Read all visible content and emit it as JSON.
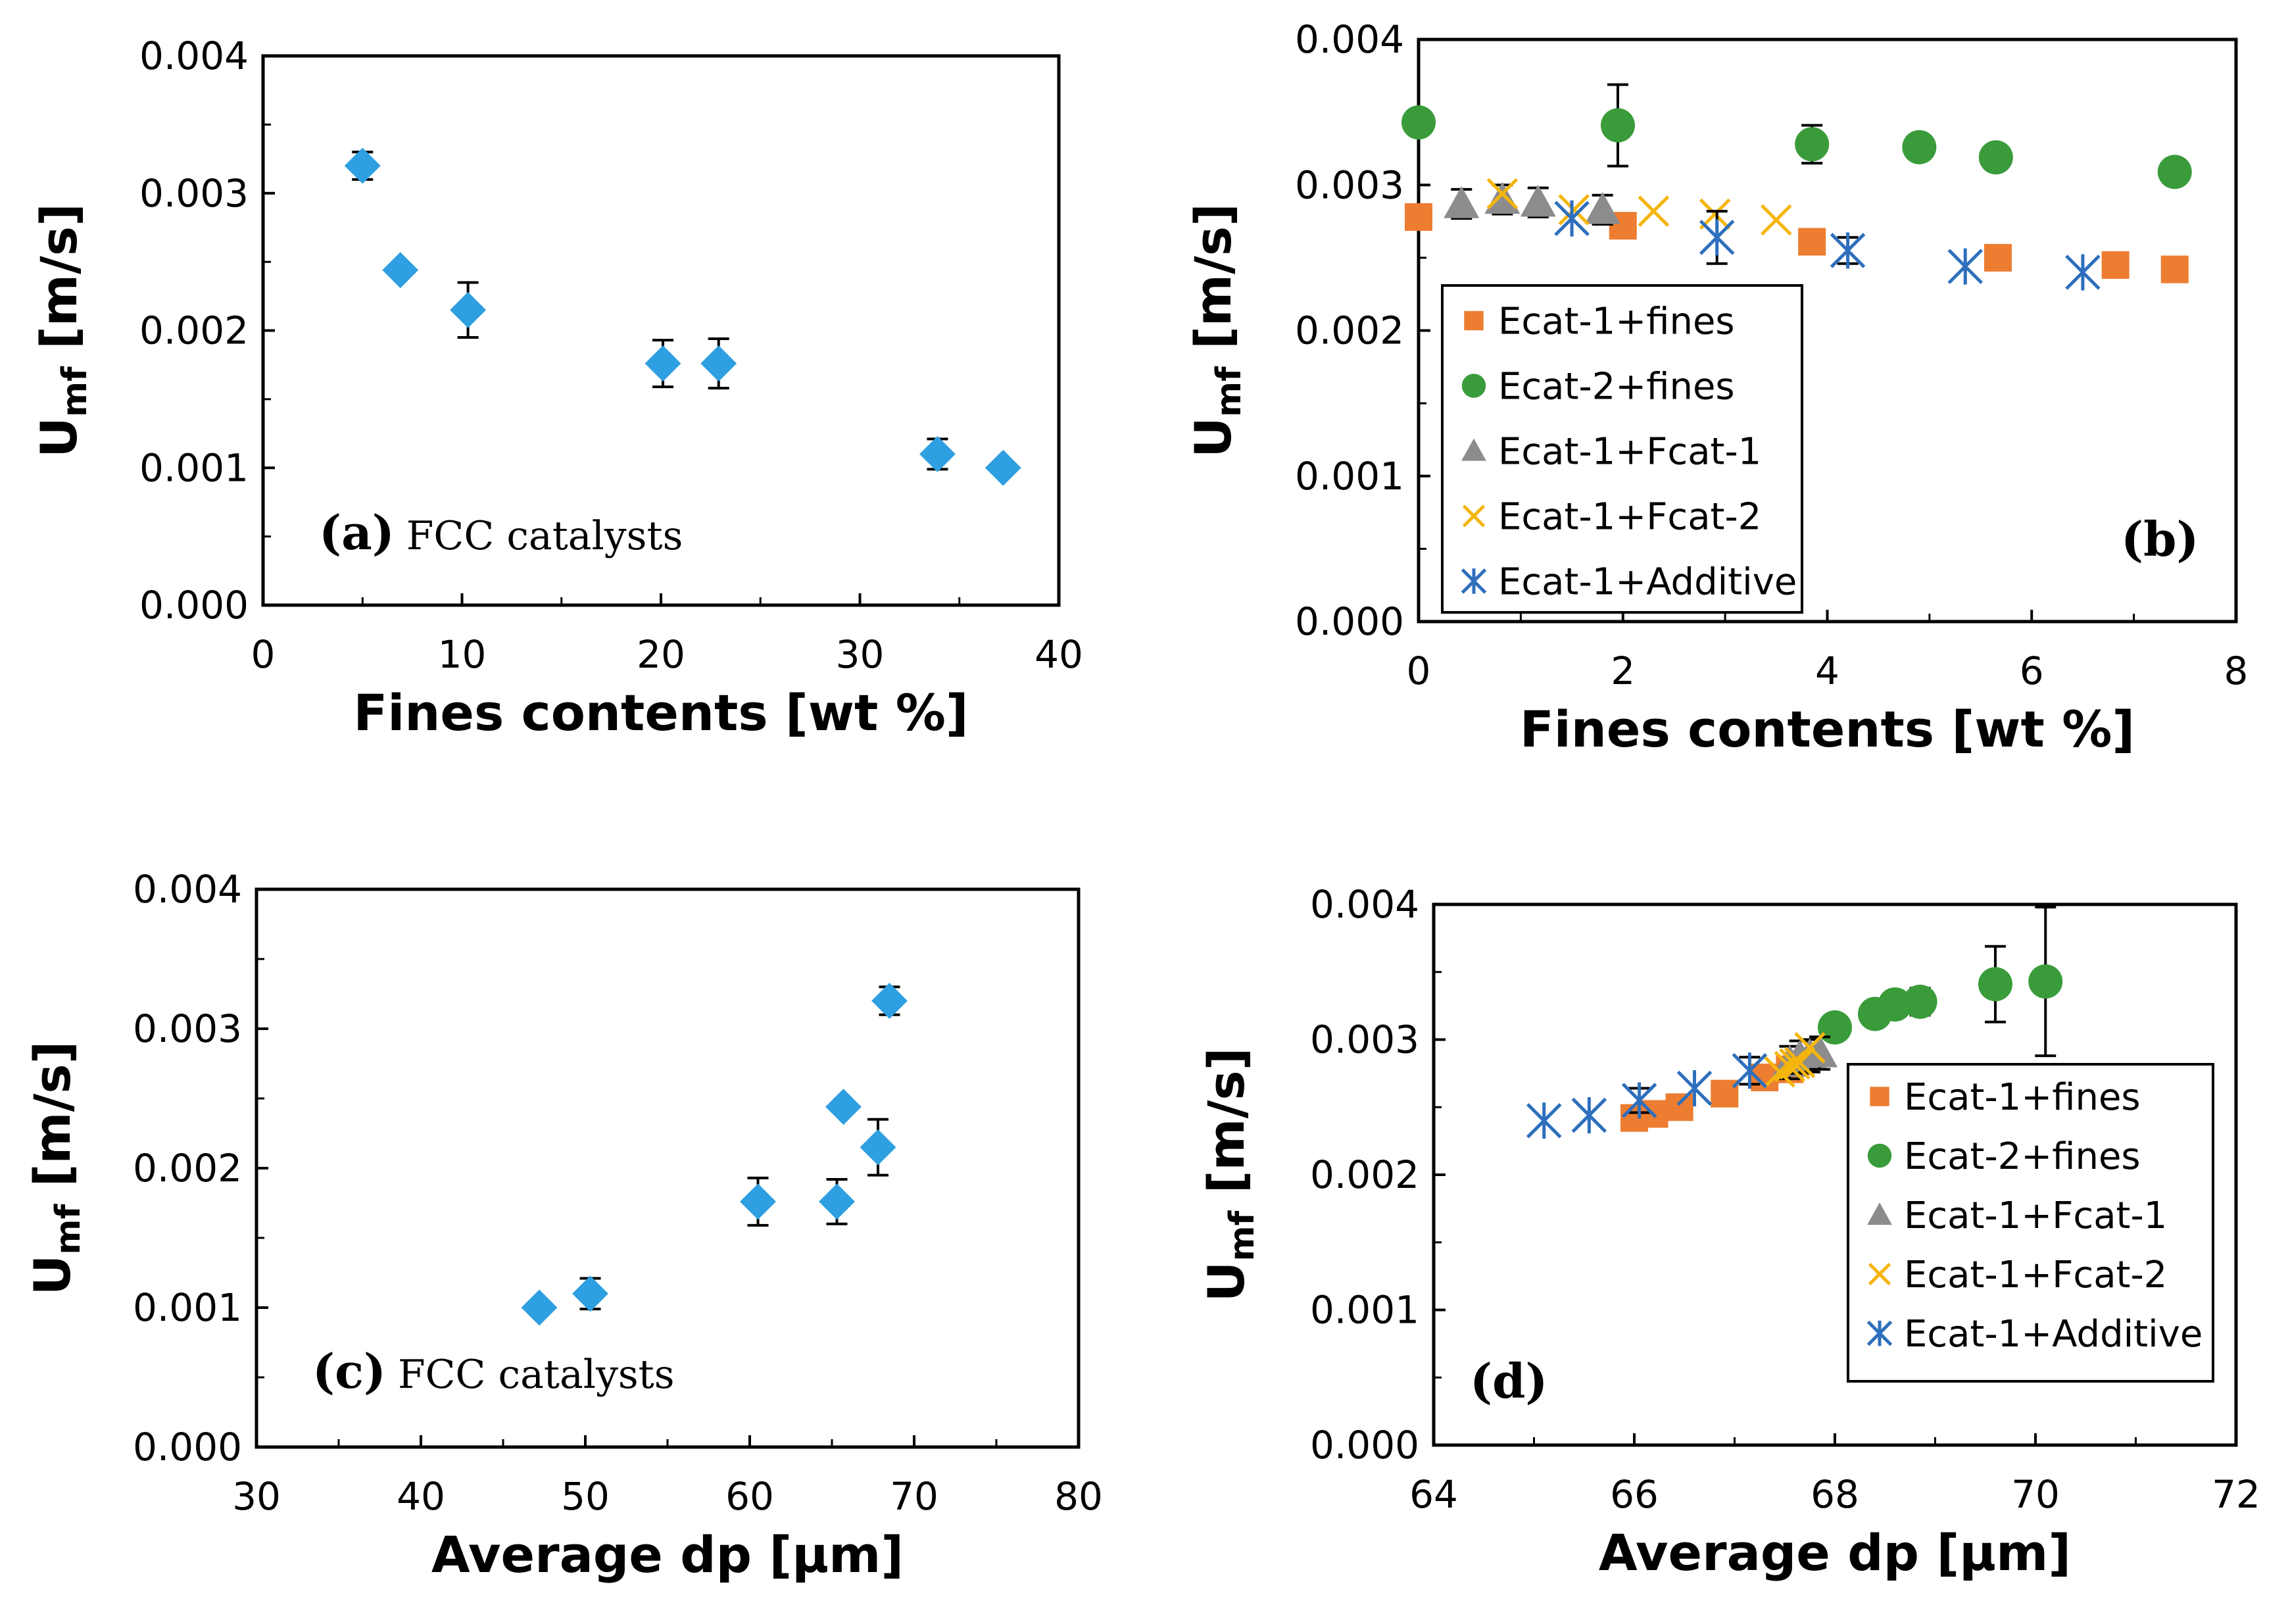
{
  "chart_data": [
    {
      "id": "a",
      "type": "scatter",
      "title": "",
      "annotation": {
        "label": "(a)",
        "text": "FCC catalysts"
      },
      "xlabel": "Fines contents [wt %]",
      "ylabel": {
        "main": "U",
        "sub": "mf",
        "units": " [m/s]"
      },
      "xlim": [
        0,
        40
      ],
      "ylim": [
        0,
        0.004
      ],
      "xticks": [
        "0",
        "10",
        "20",
        "30",
        "40"
      ],
      "xtick_values": [
        0,
        10,
        20,
        30,
        40
      ],
      "yticks": [
        "0.000",
        "0.001",
        "0.002",
        "0.003",
        "0.004"
      ],
      "ytick_values": [
        0,
        0.001,
        0.002,
        0.003,
        0.004
      ],
      "legend": null,
      "series": [
        {
          "name": "FCC catalysts",
          "marker": "diamond",
          "color": "#2e9fe0",
          "points": [
            {
              "x": 5.0,
              "y": 0.0032,
              "err": 0.0001
            },
            {
              "x": 6.9,
              "y": 0.00244,
              "err": 0
            },
            {
              "x": 10.3,
              "y": 0.00215,
              "err": 0.0002
            },
            {
              "x": 20.1,
              "y": 0.00176,
              "err": 0.00017
            },
            {
              "x": 22.9,
              "y": 0.00176,
              "err": 0.00018
            },
            {
              "x": 33.9,
              "y": 0.0011,
              "err": 0.00011
            },
            {
              "x": 37.2,
              "y": 0.001,
              "err": 0
            }
          ]
        }
      ]
    },
    {
      "id": "b",
      "type": "scatter",
      "title": "",
      "annotation": {
        "label": "(b)",
        "text": ""
      },
      "xlabel": "Fines contents [wt %]",
      "ylabel": {
        "main": "U",
        "sub": "mf",
        "units": " [m/s]"
      },
      "xlim": [
        0,
        8
      ],
      "ylim": [
        0,
        0.004
      ],
      "xticks": [
        "0",
        "2",
        "4",
        "6",
        "8"
      ],
      "xtick_values": [
        0,
        2,
        4,
        6,
        8
      ],
      "yticks": [
        "0.000",
        "0.001",
        "0.002",
        "0.003",
        "0.004"
      ],
      "ytick_values": [
        0,
        0.001,
        0.002,
        0.003,
        0.004
      ],
      "legend": "lower-left",
      "series": [
        {
          "name": "Ecat-1+fines",
          "marker": "square",
          "color": "#ed7d31",
          "points": [
            {
              "x": 0.0,
              "y": 0.00278,
              "err": 0
            },
            {
              "x": 2.0,
              "y": 0.00272,
              "err": 0
            },
            {
              "x": 3.85,
              "y": 0.00261,
              "err": 0
            },
            {
              "x": 5.67,
              "y": 0.0025,
              "err": 0
            },
            {
              "x": 6.82,
              "y": 0.00245,
              "err": 0
            },
            {
              "x": 7.4,
              "y": 0.00242,
              "err": 0
            }
          ]
        },
        {
          "name": "Ecat-2+fines",
          "marker": "circle",
          "color": "#3a9b3a",
          "points": [
            {
              "x": 0.0,
              "y": 0.00343,
              "err": 0
            },
            {
              "x": 1.95,
              "y": 0.00341,
              "err": 0.00028
            },
            {
              "x": 3.85,
              "y": 0.00328,
              "err": 0.00013
            },
            {
              "x": 4.9,
              "y": 0.00326,
              "err": 0
            },
            {
              "x": 5.65,
              "y": 0.00319,
              "err": 0
            },
            {
              "x": 7.4,
              "y": 0.00309,
              "err": 0
            }
          ]
        },
        {
          "name": "Ecat-1+Fcat-1",
          "marker": "triangle",
          "color": "#8c8c8c",
          "points": [
            {
              "x": 0.42,
              "y": 0.00287,
              "err": 0.0001
            },
            {
              "x": 0.82,
              "y": 0.0029,
              "err": 0.0001
            },
            {
              "x": 1.17,
              "y": 0.00288,
              "err": 0.0001
            },
            {
              "x": 1.8,
              "y": 0.00283,
              "err": 0.0001
            }
          ]
        },
        {
          "name": "Ecat-1+Fcat-2",
          "marker": "x",
          "color": "#f5b50d",
          "points": [
            {
              "x": 0.82,
              "y": 0.00294,
              "err": 0
            },
            {
              "x": 1.52,
              "y": 0.00283,
              "err": 0
            },
            {
              "x": 2.3,
              "y": 0.00282,
              "err": 0
            },
            {
              "x": 2.9,
              "y": 0.0028,
              "err": 0
            },
            {
              "x": 3.5,
              "y": 0.00276,
              "err": 0
            }
          ]
        },
        {
          "name": "Ecat-1+Additive",
          "marker": "asterisk",
          "color": "#2e6fbd",
          "points": [
            {
              "x": 1.5,
              "y": 0.00277,
              "err": 0
            },
            {
              "x": 2.92,
              "y": 0.00264,
              "err": 0.00018
            },
            {
              "x": 4.2,
              "y": 0.00255,
              "err": 9e-05
            },
            {
              "x": 5.35,
              "y": 0.00244,
              "err": 0
            },
            {
              "x": 6.5,
              "y": 0.0024,
              "err": 0
            }
          ]
        }
      ]
    },
    {
      "id": "c",
      "type": "scatter",
      "title": "",
      "annotation": {
        "label": "(c)",
        "text": "FCC catalysts"
      },
      "xlabel": "Average dp [μm]",
      "ylabel": {
        "main": "U",
        "sub": "mf",
        "units": " [m/s]"
      },
      "xlim": [
        30,
        80
      ],
      "ylim": [
        0,
        0.004
      ],
      "xticks": [
        "30",
        "40",
        "50",
        "60",
        "70",
        "80"
      ],
      "xtick_values": [
        30,
        40,
        50,
        60,
        70,
        80
      ],
      "yticks": [
        "0.000",
        "0.001",
        "0.002",
        "0.003",
        "0.004"
      ],
      "ytick_values": [
        0,
        0.001,
        0.002,
        0.003,
        0.004
      ],
      "legend": null,
      "series": [
        {
          "name": "FCC catalysts",
          "marker": "diamond",
          "color": "#2e9fe0",
          "points": [
            {
              "x": 47.2,
              "y": 0.001,
              "err": 0
            },
            {
              "x": 50.3,
              "y": 0.0011,
              "err": 0.00011
            },
            {
              "x": 60.5,
              "y": 0.00176,
              "err": 0.00017
            },
            {
              "x": 65.3,
              "y": 0.00176,
              "err": 0.00016
            },
            {
              "x": 65.7,
              "y": 0.00244,
              "err": 0
            },
            {
              "x": 67.8,
              "y": 0.00215,
              "err": 0.0002
            },
            {
              "x": 68.5,
              "y": 0.0032,
              "err": 0.0001
            }
          ]
        }
      ]
    },
    {
      "id": "d",
      "type": "scatter",
      "title": "",
      "annotation": {
        "label": "(d)",
        "text": ""
      },
      "xlabel": "Average dp [μm]",
      "ylabel": {
        "main": "U",
        "sub": "mf",
        "units": " [m/s]"
      },
      "xlim": [
        64,
        72
      ],
      "ylim": [
        0,
        0.004
      ],
      "xticks": [
        "64",
        "66",
        "68",
        "70",
        "72"
      ],
      "xtick_values": [
        64,
        66,
        68,
        70,
        72
      ],
      "yticks": [
        "0.000",
        "0.001",
        "0.002",
        "0.003",
        "0.004"
      ],
      "ytick_values": [
        0,
        0.001,
        0.002,
        0.003,
        0.004
      ],
      "legend": "lower-right",
      "series": [
        {
          "name": "Ecat-1+fines",
          "marker": "square",
          "color": "#ed7d31",
          "points": [
            {
              "x": 66.0,
              "y": 0.00242,
              "err": 0
            },
            {
              "x": 66.2,
              "y": 0.00245,
              "err": 0
            },
            {
              "x": 66.45,
              "y": 0.0025,
              "err": 0
            },
            {
              "x": 66.9,
              "y": 0.0026,
              "err": 0
            },
            {
              "x": 67.3,
              "y": 0.00272,
              "err": 0
            },
            {
              "x": 67.55,
              "y": 0.00278,
              "err": 0
            }
          ]
        },
        {
          "name": "Ecat-2+fines",
          "marker": "circle",
          "color": "#3a9b3a",
          "points": [
            {
              "x": 68.0,
              "y": 0.00309,
              "err": 0
            },
            {
              "x": 68.4,
              "y": 0.00319,
              "err": 0
            },
            {
              "x": 68.6,
              "y": 0.00326,
              "err": 0
            },
            {
              "x": 68.85,
              "y": 0.00328,
              "err": 0.0001
            },
            {
              "x": 69.6,
              "y": 0.00341,
              "err": 0.00028
            },
            {
              "x": 70.1,
              "y": 0.00343,
              "err": 0.00055
            }
          ]
        },
        {
          "name": "Ecat-1+Fcat-1",
          "marker": "triangle",
          "color": "#8c8c8c",
          "points": [
            {
              "x": 67.55,
              "y": 0.00283,
              "err": 0.00012
            },
            {
              "x": 67.65,
              "y": 0.00287,
              "err": 0.00012
            },
            {
              "x": 67.75,
              "y": 0.00288,
              "err": 0.00012
            },
            {
              "x": 67.85,
              "y": 0.0029,
              "err": 0.00012
            }
          ]
        },
        {
          "name": "Ecat-1+Fcat-2",
          "marker": "x",
          "color": "#f5b50d",
          "points": [
            {
              "x": 67.45,
              "y": 0.00276,
              "err": 0
            },
            {
              "x": 67.55,
              "y": 0.0028,
              "err": 0
            },
            {
              "x": 67.6,
              "y": 0.00282,
              "err": 0
            },
            {
              "x": 67.65,
              "y": 0.00283,
              "err": 0
            },
            {
              "x": 67.75,
              "y": 0.00294,
              "err": 0
            }
          ]
        },
        {
          "name": "Ecat-1+Additive",
          "marker": "asterisk",
          "color": "#2e6fbd",
          "points": [
            {
              "x": 65.1,
              "y": 0.0024,
              "err": 0
            },
            {
              "x": 65.55,
              "y": 0.00244,
              "err": 0
            },
            {
              "x": 66.05,
              "y": 0.00255,
              "err": 9e-05
            },
            {
              "x": 66.6,
              "y": 0.00264,
              "err": 0
            },
            {
              "x": 67.15,
              "y": 0.00277,
              "err": 0.0001
            }
          ]
        }
      ]
    }
  ]
}
